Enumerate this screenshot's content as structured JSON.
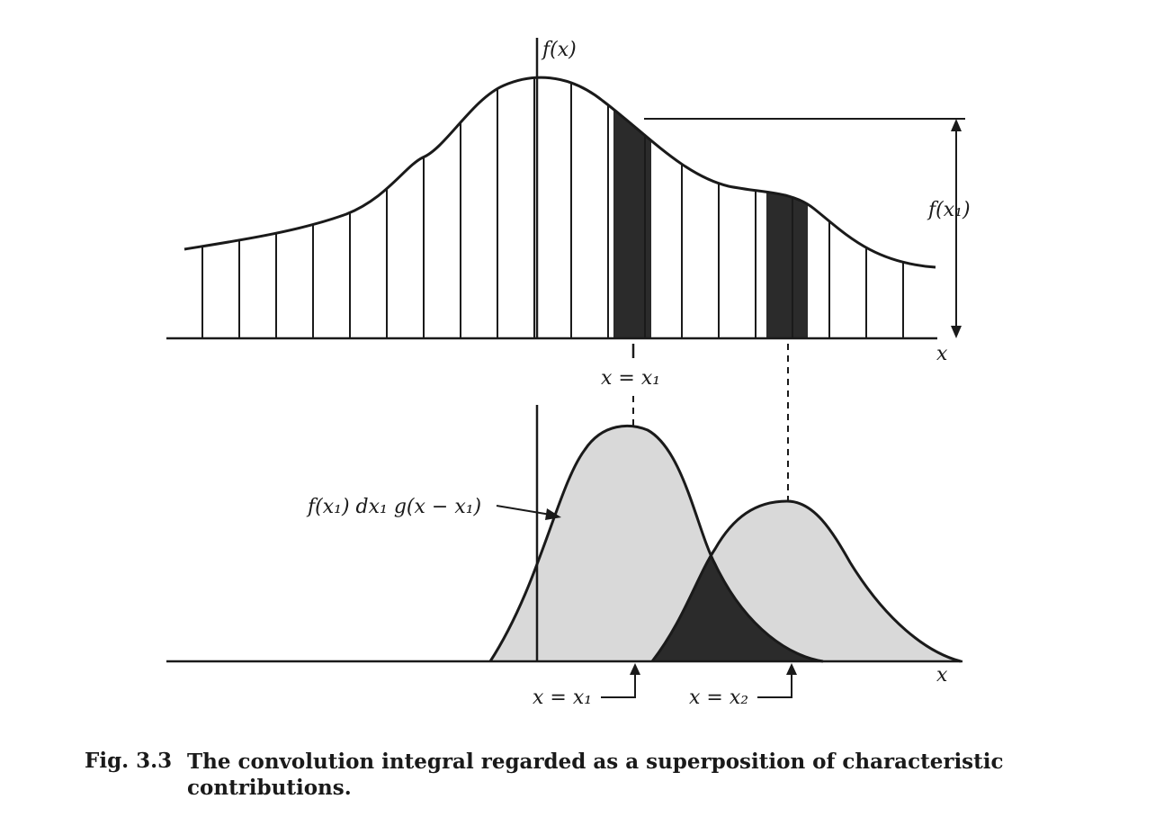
{
  "top_plot": {
    "y_axis_label": "f(x)",
    "x_axis_label": "x",
    "height_label": "f(x₁)",
    "marker_label": "x = x₁"
  },
  "bottom_plot": {
    "x_axis_label": "x",
    "curve_label": "f(x₁) dx₁ g(x − x₁)",
    "arrow_label_1": "x = x₁",
    "arrow_label_2": "x = x₂"
  },
  "caption": {
    "label": "Fig. 3.3",
    "text": "The convolution integral regarded as a superposition of characteristic contributions."
  },
  "colors": {
    "ink": "#1a1a1a",
    "shaded_strip": "#2b2b2b",
    "light_fill": "#d9d9d9",
    "overlap_fill": "#2b2b2b"
  }
}
